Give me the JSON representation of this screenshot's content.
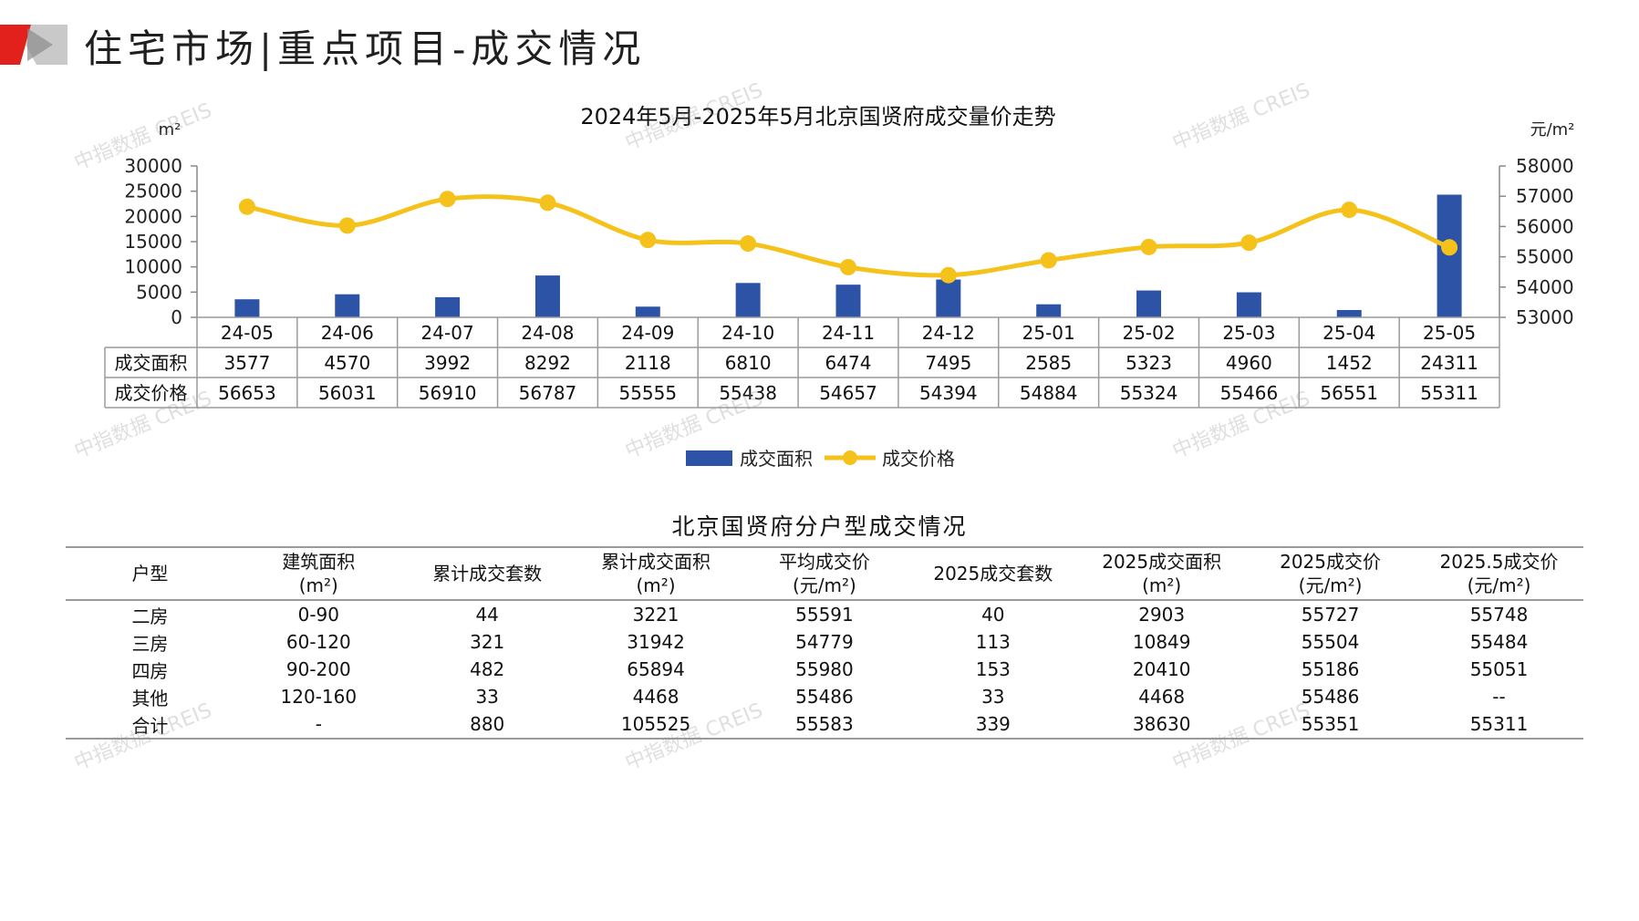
{
  "page": {
    "title": "住宅市场|重点项目-成交情况"
  },
  "colors": {
    "bar": "#2c53a5",
    "line": "#f5c21b",
    "accent_red": "#e3211c",
    "grey": "#8c8c8c"
  },
  "chart_data": {
    "type": "bar+line",
    "title": "2024年5月-2025年5月北京国贤府成交量价走势",
    "left_unit": "m²",
    "right_unit": "元/m²",
    "categories": [
      "24-05",
      "24-06",
      "24-07",
      "24-08",
      "24-09",
      "24-10",
      "24-11",
      "24-12",
      "25-01",
      "25-02",
      "25-03",
      "25-04",
      "25-05"
    ],
    "series": [
      {
        "name": "成交面积",
        "type": "bar",
        "axis": "left",
        "values": [
          3577,
          4570,
          3992,
          8292,
          2118,
          6810,
          6474,
          7495,
          2585,
          5323,
          4960,
          1452,
          24311
        ]
      },
      {
        "name": "成交价格",
        "type": "line",
        "axis": "right",
        "values": [
          56653,
          56031,
          56910,
          56787,
          55555,
          55438,
          54657,
          54394,
          54884,
          55324,
          55466,
          56551,
          55311
        ]
      }
    ],
    "left_axis": {
      "ylim": [
        0,
        30000
      ],
      "ticks": [
        0,
        5000,
        10000,
        15000,
        20000,
        25000,
        30000
      ]
    },
    "right_axis": {
      "ylim": [
        53000,
        58000
      ],
      "ticks": [
        53000,
        54000,
        55000,
        56000,
        57000,
        58000
      ]
    },
    "legend_position": "bottom",
    "data_table": true
  },
  "unit_table": {
    "title": "北京国贤府分户型成交情况",
    "headers": [
      [
        "户型"
      ],
      [
        "建筑面积",
        "(m²)"
      ],
      [
        "累计成交套数"
      ],
      [
        "累计成交面积",
        "(m²)"
      ],
      [
        "平均成交价",
        "(元/m²)"
      ],
      [
        "2025成交套数"
      ],
      [
        "2025成交面积",
        "(m²)"
      ],
      [
        "2025成交价",
        "(元/m²)"
      ],
      [
        "2025.5成交价",
        "(元/m²)"
      ]
    ],
    "rows": [
      [
        "二房",
        "0-90",
        "44",
        "3221",
        "55591",
        "40",
        "2903",
        "55727",
        "55748"
      ],
      [
        "三房",
        "60-120",
        "321",
        "31942",
        "54779",
        "113",
        "10849",
        "55504",
        "55484"
      ],
      [
        "四房",
        "90-200",
        "482",
        "65894",
        "55980",
        "153",
        "20410",
        "55186",
        "55051"
      ],
      [
        "其他",
        "120-160",
        "33",
        "4468",
        "55486",
        "33",
        "4468",
        "55486",
        "--"
      ],
      [
        "合计",
        "-",
        "880",
        "105525",
        "55583",
        "339",
        "38630",
        "55351",
        "55311"
      ]
    ]
  },
  "watermark": "中指数据 CREIS"
}
